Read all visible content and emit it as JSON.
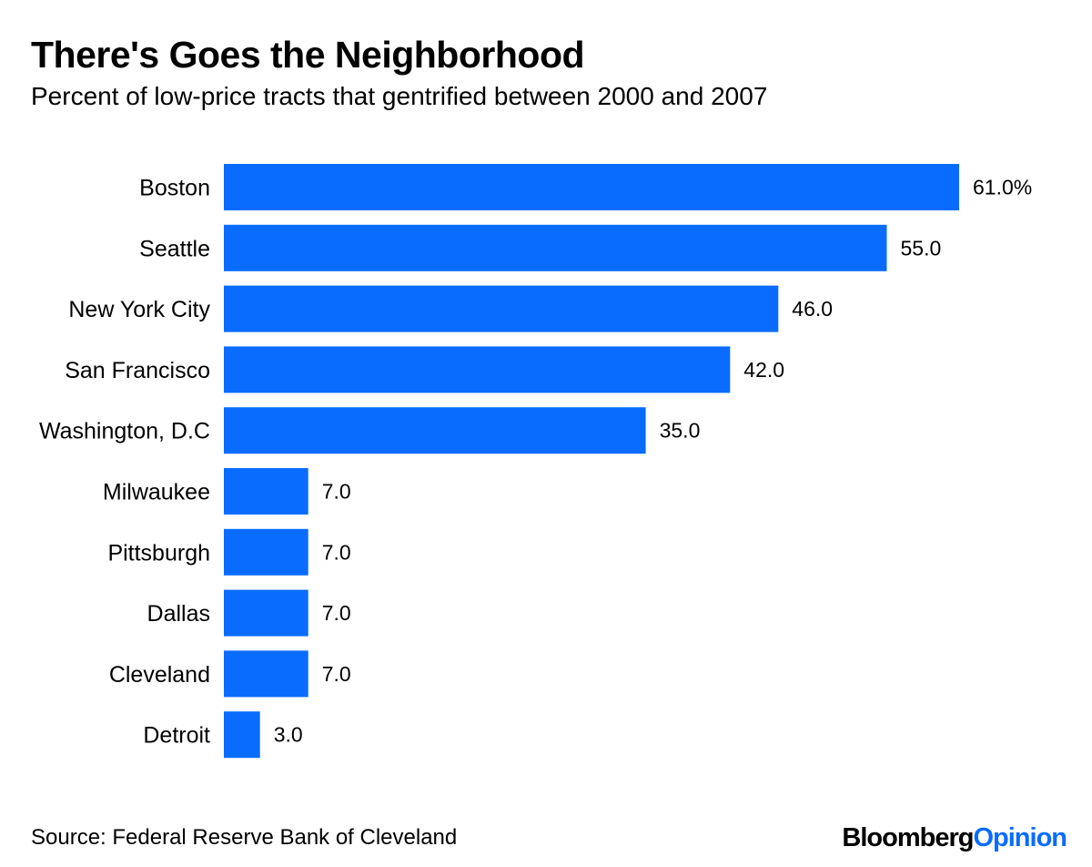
{
  "chart_data": {
    "type": "bar",
    "orientation": "horizontal",
    "title": "There's Goes the Neighborhood",
    "subtitle": "Percent of low-price tracts that gentrified between 2000 and 2007",
    "categories": [
      "Boston",
      "Seattle",
      "New York City",
      "San Francisco",
      "Washington, D.C",
      "Milwaukee",
      "Pittsburgh",
      "Dallas",
      "Cleveland",
      "Detroit"
    ],
    "values": [
      61.0,
      55.0,
      46.0,
      42.0,
      35.0,
      7.0,
      7.0,
      7.0,
      7.0,
      3.0
    ],
    "value_labels": [
      "61.0%",
      "55.0",
      "46.0",
      "42.0",
      "35.0",
      "7.0",
      "7.0",
      "7.0",
      "7.0",
      "3.0"
    ],
    "xlim": [
      0,
      61
    ],
    "xlabel": "",
    "ylabel": "",
    "grid": false,
    "legend": "none",
    "bar_color": "#0a6cff"
  },
  "footer": {
    "source": "Source: Federal Reserve Bank of Cleveland",
    "brand_part_1": "Bloomberg",
    "brand_part_2": "Opinion",
    "brand_color_1": "#000000",
    "brand_color_2": "#0a6cff"
  }
}
